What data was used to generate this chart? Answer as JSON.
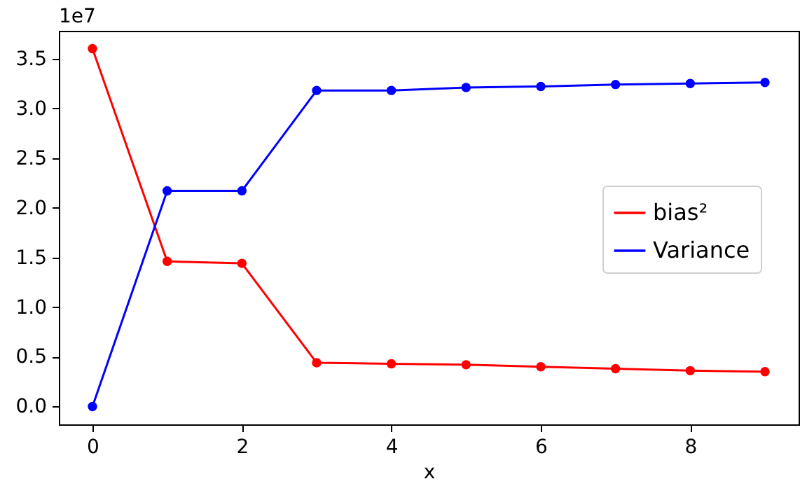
{
  "chart_data": {
    "type": "line",
    "xlabel": "x",
    "annotations": [
      "1e7"
    ],
    "x": [
      0,
      1,
      2,
      3,
      4,
      5,
      6,
      7,
      8,
      9
    ],
    "series": [
      {
        "name": "bias²",
        "color": "#ff0000",
        "values": [
          3.6,
          1.46,
          1.44,
          0.44,
          0.43,
          0.42,
          0.4,
          0.38,
          0.36,
          0.35
        ]
      },
      {
        "name": "Variance",
        "color": "#0000ff",
        "values": [
          0,
          2.17,
          2.17,
          3.18,
          3.18,
          3.21,
          3.22,
          3.24,
          3.25,
          3.26
        ]
      }
    ],
    "xlim": [
      -0.45,
      9.45
    ],
    "xticks": [
      0,
      2,
      4,
      6,
      8
    ],
    "ylim": [
      -0.18,
      3.78
    ],
    "yticks": [
      {
        "value": 0,
        "label": "0.0"
      },
      {
        "value": 0.5,
        "label": "0.5"
      },
      {
        "value": 1,
        "label": "1.0"
      },
      {
        "value": 1.5,
        "label": "1.5"
      },
      {
        "value": 2,
        "label": "2.0"
      },
      {
        "value": 2.5,
        "label": "2.5"
      },
      {
        "value": 3,
        "label": "3.0"
      },
      {
        "value": 3.5,
        "label": "3.5"
      }
    ],
    "legend": "right",
    "marker": "circle",
    "line_style": "solid"
  }
}
